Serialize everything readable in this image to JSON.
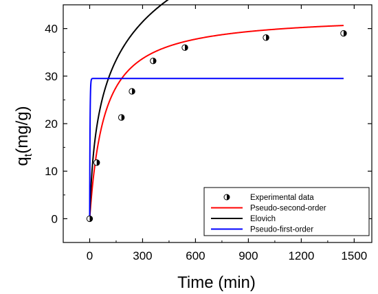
{
  "chart_data": {
    "type": "scatter",
    "xlabel": "Time (min)",
    "ylabel_main": "q",
    "ylabel_sub": "t",
    "ylabel_unit": "(mg/g)",
    "xlim": [
      -150,
      1600
    ],
    "ylim": [
      -5,
      45
    ],
    "xticks": [
      0,
      300,
      600,
      900,
      1200,
      1500
    ],
    "yticks": [
      0,
      10,
      20,
      30,
      40
    ],
    "grid": false,
    "legend_position": "bottom-right",
    "experimental": {
      "name": "Experimental data",
      "x": [
        0,
        40,
        180,
        240,
        360,
        540,
        1000,
        1440
      ],
      "y": [
        0,
        11.8,
        21.3,
        26.8,
        33.2,
        36.0,
        38.1,
        39.0
      ]
    },
    "models": [
      {
        "name": "Pseudo-second-order",
        "color": "#ff0000",
        "kind": "pso",
        "qe": 43.0,
        "k": 0.00028
      },
      {
        "name": "Elovich",
        "color": "#000000",
        "kind": "elovich",
        "a": 0.0966,
        "b": 12.18
      },
      {
        "name": "Pseudo-first-order",
        "color": "#0000ff",
        "kind": "pfo",
        "qe": 29.5,
        "k": 0.5
      }
    ],
    "x_end": 1440
  }
}
